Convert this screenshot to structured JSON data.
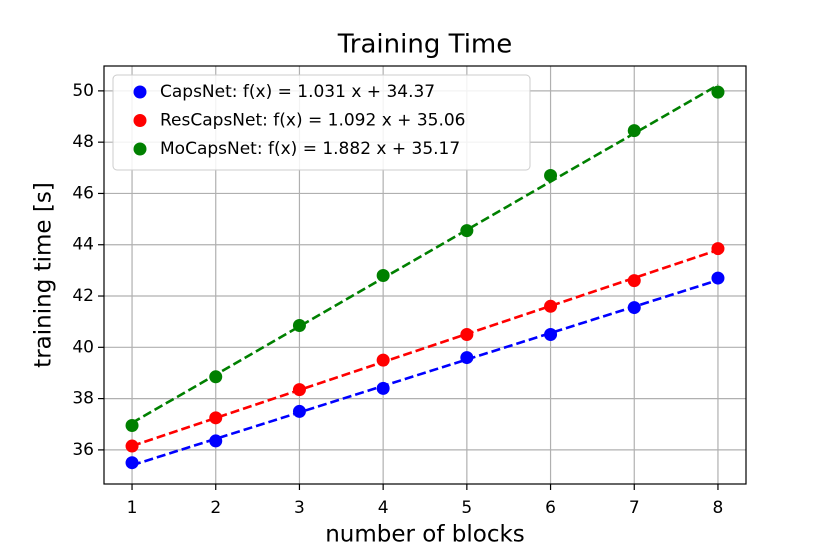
{
  "chart_data": {
    "type": "scatter",
    "title": "Training Time",
    "xlabel": "number of blocks",
    "ylabel": "training time [s]",
    "x": [
      1,
      2,
      3,
      4,
      5,
      6,
      7,
      8
    ],
    "series": [
      {
        "name": "CapsNet: f(x) = 1.031 x + 34.37",
        "color": "#0000ff",
        "values": [
          35.5,
          36.35,
          37.5,
          38.4,
          39.6,
          40.5,
          41.55,
          42.7
        ],
        "fit": [
          35.401,
          36.432,
          37.463,
          38.494,
          39.525,
          40.556,
          41.587,
          42.618
        ]
      },
      {
        "name": "ResCapsNet: f(x) = 1.092 x + 35.06",
        "color": "#ff0000",
        "values": [
          36.15,
          37.25,
          38.35,
          39.5,
          40.5,
          41.6,
          42.6,
          43.85
        ],
        "fit": [
          36.152,
          37.244,
          38.336,
          39.428,
          40.52,
          41.612,
          42.704,
          43.796
        ]
      },
      {
        "name": "MoCapsNet: f(x) = 1.882 x + 35.17",
        "color": "#008000",
        "values": [
          36.95,
          38.85,
          40.85,
          42.8,
          44.55,
          46.7,
          48.45,
          49.95
        ],
        "fit": [
          37.052,
          38.934,
          40.816,
          42.698,
          44.58,
          46.462,
          48.344,
          50.226
        ]
      }
    ],
    "xlim": [
      0.665,
      8.335
    ],
    "ylim": [
      34.67,
      50.97
    ],
    "xticks": [
      1,
      2,
      3,
      4,
      5,
      6,
      7,
      8
    ],
    "yticks": [
      36,
      38,
      40,
      42,
      44,
      46,
      48,
      50
    ],
    "grid": true,
    "legend": "upper-left"
  }
}
